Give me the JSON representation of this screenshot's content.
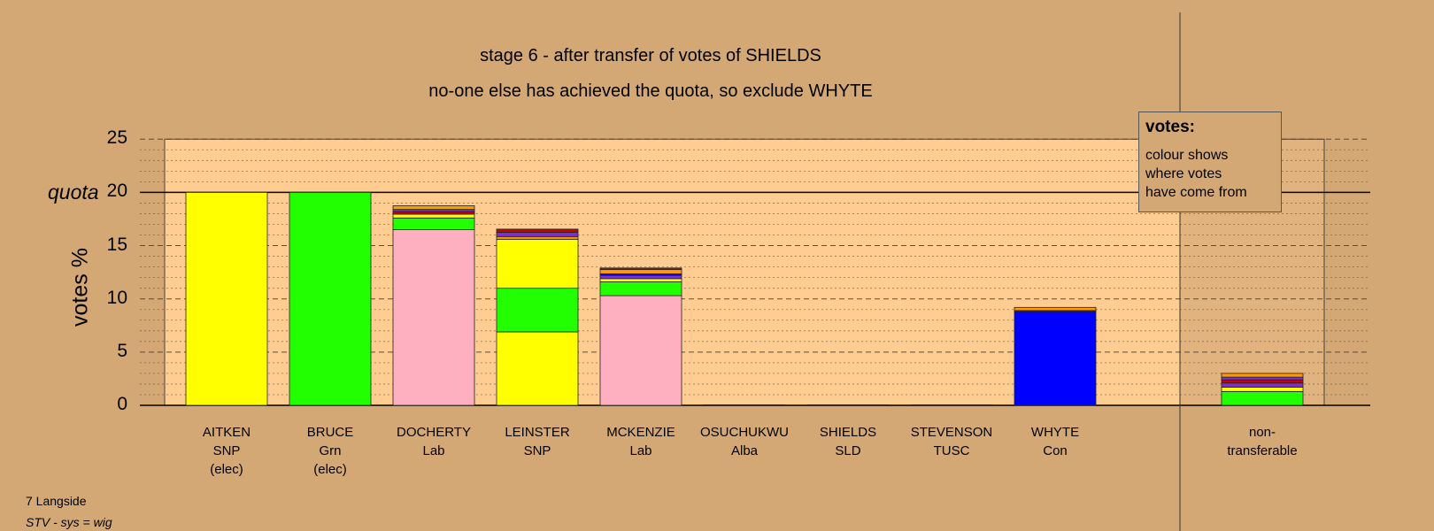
{
  "title_line1": "stage 6 - after transfer of votes of SHIELDS",
  "title_line2": "no-one else has achieved the quota, so exclude WHYTE",
  "legend": {
    "title": "votes:",
    "lines": [
      "colour shows",
      "where votes",
      "have come from"
    ]
  },
  "footer": {
    "ward": "7 Langside",
    "system": "STV - sys = wig"
  },
  "colors": {
    "background": "#d4a874",
    "plot_background": "#ffcc91",
    "SNP": "#ffff00",
    "Grn": "#22ff00",
    "Lab": "#ffb0c0",
    "Con": "#0000ff",
    "Alba": "#7733cc",
    "SLD": "#ff9900",
    "TUSC": "#cc0000"
  },
  "chart_data": {
    "type": "bar",
    "stacked": true,
    "ylabel": "votes %",
    "ylim": [
      0,
      25
    ],
    "yticks": [
      0,
      5,
      10,
      15,
      20,
      25
    ],
    "quota": 20,
    "quota_label": "quota",
    "grid": "dotted minor every 1, dashed every 5",
    "categories": [
      {
        "name": "AITKEN",
        "party": "SNP",
        "note": "(elec)"
      },
      {
        "name": "BRUCE",
        "party": "Grn",
        "note": "(elec)"
      },
      {
        "name": "DOCHERTY",
        "party": "Lab",
        "note": ""
      },
      {
        "name": "LEINSTER",
        "party": "SNP",
        "note": ""
      },
      {
        "name": "MCKENZIE",
        "party": "Lab",
        "note": ""
      },
      {
        "name": "OSUCHUKWU",
        "party": "Alba",
        "note": ""
      },
      {
        "name": "SHIELDS",
        "party": "SLD",
        "note": ""
      },
      {
        "name": "STEVENSON",
        "party": "TUSC",
        "note": ""
      },
      {
        "name": "WHYTE",
        "party": "Con",
        "note": ""
      }
    ],
    "nontransferable_label": [
      "non-",
      "transferable"
    ],
    "bars": [
      [
        {
          "from": "SNP",
          "value": 20.0
        }
      ],
      [
        {
          "from": "Grn",
          "value": 20.0
        }
      ],
      [
        {
          "from": "Lab",
          "value": 16.5
        },
        {
          "from": "Grn",
          "value": 1.1
        },
        {
          "from": "SNP",
          "value": 0.35
        },
        {
          "from": "TUSC",
          "value": 0.25
        },
        {
          "from": "Alba",
          "value": 0.2
        },
        {
          "from": "SLD",
          "value": 0.35
        }
      ],
      [
        {
          "from": "SNP",
          "value": 6.9
        },
        {
          "from": "Grn",
          "value": 4.1
        },
        {
          "from": "SNP",
          "value": 4.6
        },
        {
          "from": "SLD",
          "value": 0.25
        },
        {
          "from": "Alba",
          "value": 0.4
        },
        {
          "from": "TUSC",
          "value": 0.3
        }
      ],
      [
        {
          "from": "Lab",
          "value": 10.3
        },
        {
          "from": "Grn",
          "value": 1.3
        },
        {
          "from": "SNP",
          "value": 0.3
        },
        {
          "from": "Alba",
          "value": 0.3
        },
        {
          "from": "Con",
          "value": 0.15
        },
        {
          "from": "SLD",
          "value": 0.4
        },
        {
          "from": "TUSC",
          "value": 0.15
        }
      ],
      [],
      [],
      [],
      [
        {
          "from": "Con",
          "value": 8.8
        },
        {
          "from": "TUSC",
          "value": 0.1
        },
        {
          "from": "SLD",
          "value": 0.3
        }
      ],
      [
        {
          "from": "Grn",
          "value": 1.3
        },
        {
          "from": "SNP",
          "value": 0.4
        },
        {
          "from": "Alba",
          "value": 0.4
        },
        {
          "from": "TUSC",
          "value": 0.3
        },
        {
          "from": "Alba",
          "value": 0.25
        },
        {
          "from": "SLD",
          "value": 0.35
        }
      ]
    ]
  }
}
